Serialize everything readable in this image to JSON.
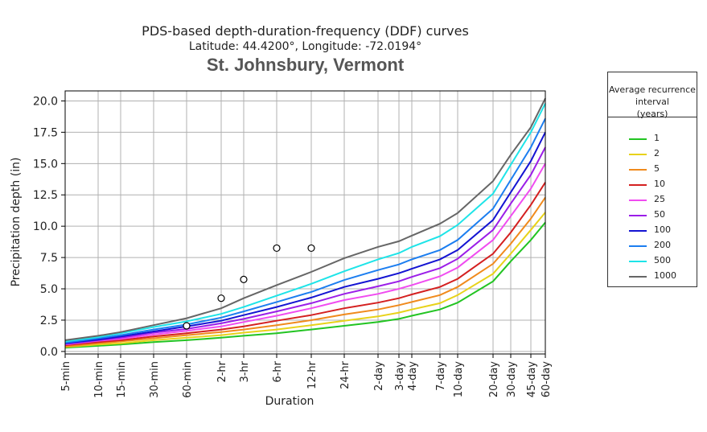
{
  "titles": {
    "main": "PDS-based depth-duration-frequency (DDF) curves",
    "coords": "Latitude: 44.4200°, Longitude: -72.0194°",
    "location": "St. Johnsbury, Vermont"
  },
  "legend": {
    "title_lines": [
      "Average recurrence",
      "interval",
      "(years)"
    ]
  },
  "chart_data": {
    "type": "line",
    "title": "PDS-based depth-duration-frequency (DDF) curves",
    "xlabel": "Duration",
    "ylabel": "Precipitation depth (in)",
    "x": [
      "5-min",
      "10-min",
      "15-min",
      "30-min",
      "60-min",
      "2-hr",
      "3-hr",
      "6-hr",
      "12-hr",
      "24-hr",
      "2-day",
      "3-day",
      "4-day",
      "7-day",
      "10-day",
      "20-day",
      "30-day",
      "45-day",
      "60-day"
    ],
    "ylim": [
      -0.2,
      20.8
    ],
    "yticks": [
      0.0,
      2.5,
      5.0,
      7.5,
      10.0,
      12.5,
      15.0,
      17.5,
      20.0
    ],
    "ytick_labels": [
      "0.0",
      "2.5",
      "5.0",
      "7.5",
      "10.0",
      "12.5",
      "15.0",
      "17.5",
      "20.0"
    ],
    "grid": true,
    "legend_position": "outside right",
    "series": [
      {
        "name": "1",
        "color": "#22c422",
        "values": [
          0.3,
          0.45,
          0.55,
          0.75,
          0.9,
          1.1,
          1.25,
          1.45,
          1.75,
          2.05,
          2.35,
          2.6,
          2.85,
          3.35,
          3.9,
          5.6,
          7.2,
          8.9,
          10.3
        ]
      },
      {
        "name": "2",
        "color": "#e8d21a",
        "values": [
          0.35,
          0.55,
          0.65,
          0.9,
          1.1,
          1.3,
          1.5,
          1.75,
          2.1,
          2.45,
          2.8,
          3.1,
          3.35,
          3.85,
          4.5,
          6.2,
          7.8,
          9.7,
          11.1
        ]
      },
      {
        "name": "5",
        "color": "#f08a1c",
        "values": [
          0.4,
          0.65,
          0.8,
          1.05,
          1.3,
          1.55,
          1.75,
          2.1,
          2.5,
          2.95,
          3.35,
          3.7,
          3.95,
          4.5,
          5.15,
          7.0,
          8.6,
          10.6,
          12.3
        ]
      },
      {
        "name": "10",
        "color": "#d42020",
        "values": [
          0.5,
          0.75,
          0.9,
          1.2,
          1.45,
          1.75,
          2.0,
          2.45,
          2.9,
          3.45,
          3.9,
          4.25,
          4.55,
          5.15,
          5.8,
          7.8,
          9.5,
          11.7,
          13.5
        ]
      },
      {
        "name": "25",
        "color": "#f04cf0",
        "values": [
          0.55,
          0.85,
          1.0,
          1.35,
          1.65,
          2.0,
          2.35,
          2.85,
          3.45,
          4.1,
          4.6,
          5.0,
          5.3,
          6.0,
          6.7,
          8.9,
          10.8,
          13.0,
          15.0
        ]
      },
      {
        "name": "50",
        "color": "#9b1ee8",
        "values": [
          0.6,
          0.9,
          1.1,
          1.5,
          1.8,
          2.25,
          2.6,
          3.2,
          3.85,
          4.6,
          5.2,
          5.6,
          5.95,
          6.65,
          7.4,
          9.7,
          11.8,
          14.1,
          16.3
        ]
      },
      {
        "name": "100",
        "color": "#1414d2",
        "values": [
          0.65,
          0.95,
          1.2,
          1.6,
          2.0,
          2.45,
          2.9,
          3.55,
          4.3,
          5.15,
          5.8,
          6.25,
          6.6,
          7.35,
          8.1,
          10.5,
          12.7,
          15.2,
          17.5
        ]
      },
      {
        "name": "200",
        "color": "#1c7ef0",
        "values": [
          0.7,
          1.05,
          1.3,
          1.75,
          2.15,
          2.7,
          3.2,
          3.95,
          4.75,
          5.7,
          6.5,
          6.95,
          7.35,
          8.1,
          8.9,
          11.4,
          13.7,
          16.3,
          18.6
        ]
      },
      {
        "name": "500",
        "color": "#1ee4e8",
        "values": [
          0.8,
          1.15,
          1.45,
          1.95,
          2.4,
          3.0,
          3.55,
          4.45,
          5.4,
          6.4,
          7.35,
          7.85,
          8.35,
          9.2,
          10.1,
          12.6,
          14.9,
          17.5,
          19.8
        ]
      },
      {
        "name": "1000",
        "color": "#666666",
        "values": [
          0.9,
          1.25,
          1.55,
          2.1,
          2.65,
          3.45,
          4.25,
          5.3,
          6.35,
          7.45,
          8.35,
          8.8,
          9.25,
          10.2,
          11.05,
          13.6,
          15.7,
          17.9,
          20.2
        ]
      }
    ],
    "annotations": {
      "markers": [
        {
          "x": "60-min",
          "y": 2.05
        },
        {
          "x": "2-hr",
          "y": 4.25
        },
        {
          "x": "3-hr",
          "y": 5.75
        },
        {
          "x": "6-hr",
          "y": 8.25
        },
        {
          "x": "12-hr",
          "y": 8.25
        }
      ]
    }
  }
}
